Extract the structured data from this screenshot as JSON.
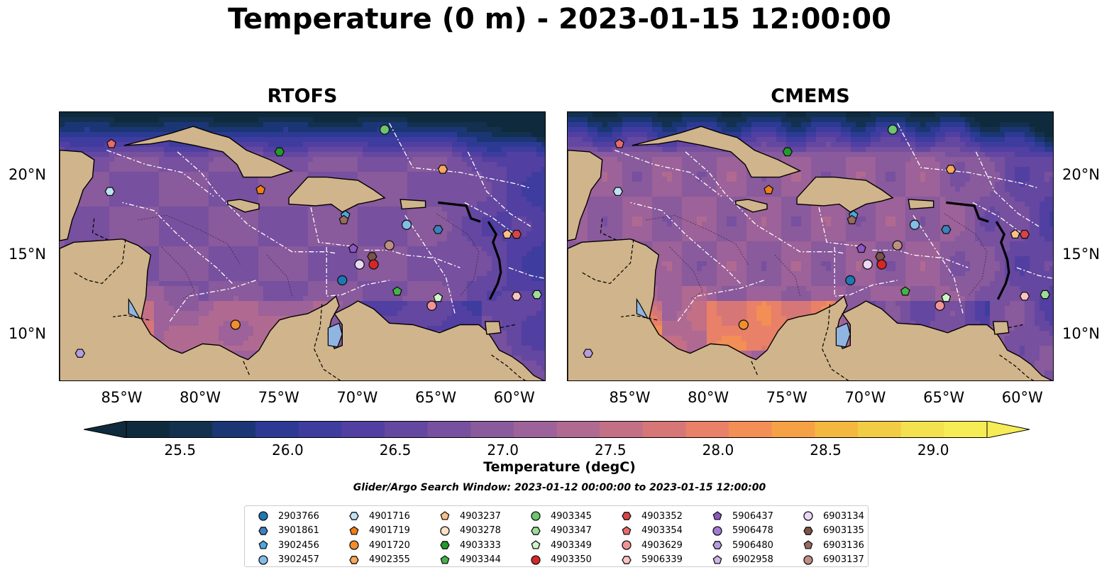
{
  "figure": {
    "title": "Temperature (0 m) - 2023-01-15 12:00:00"
  },
  "panels": [
    {
      "title": "RTOFS",
      "variant": "rtofs"
    },
    {
      "title": "CMEMS",
      "variant": "cmems"
    }
  ],
  "axes": {
    "x_ticks": [
      "85°W",
      "80°W",
      "75°W",
      "70°W",
      "65°W",
      "60°W"
    ],
    "y_ticks": [
      "20°N",
      "15°N",
      "10°N"
    ],
    "lon_range": [
      -89,
      -58
    ],
    "lat_range": [
      7,
      24
    ]
  },
  "colorbar": {
    "label": "Temperature (degC)",
    "ticks": [
      "25.5",
      "26.0",
      "26.5",
      "27.0",
      "27.5",
      "28.0",
      "28.5",
      "29.0"
    ],
    "range": [
      25.25,
      29.25
    ],
    "extend": "both",
    "colors": [
      "#0f2a3c",
      "#13304f",
      "#1b3675",
      "#2c3a94",
      "#3e3d9f",
      "#523fa2",
      "#6447a1",
      "#77509f",
      "#895a9c",
      "#9c6299",
      "#b06a91",
      "#c36f86",
      "#d67676",
      "#e98068",
      "#f38e56",
      "#f7a146",
      "#f4b83e",
      "#f2cc44",
      "#f3e14f",
      "#f6ec55"
    ]
  },
  "search_window": "Glider/Argo Search Window: 2023-01-12 00:00:00 to 2023-01-15 12:00:00",
  "legend": [
    {
      "id": "2903766",
      "marker": "circle",
      "color": "#1f77b4"
    },
    {
      "id": "3901861",
      "marker": "hexagon",
      "color": "#3d80c0"
    },
    {
      "id": "3902456",
      "marker": "pentagon",
      "color": "#4ea7e0"
    },
    {
      "id": "3902457",
      "marker": "circle",
      "color": "#82bde8"
    },
    {
      "id": "4901716",
      "marker": "hexagon",
      "color": "#bfe3f5"
    },
    {
      "id": "4901719",
      "marker": "pentagon",
      "color": "#f07f14"
    },
    {
      "id": "4901720",
      "marker": "circle",
      "color": "#f28f2c"
    },
    {
      "id": "4902355",
      "marker": "hexagon",
      "color": "#f8a85a"
    },
    {
      "id": "4903237",
      "marker": "pentagon",
      "color": "#fcc188"
    },
    {
      "id": "4903278",
      "marker": "circle",
      "color": "#fde0c5"
    },
    {
      "id": "4903333",
      "marker": "hexagon",
      "color": "#239b2a"
    },
    {
      "id": "4903344",
      "marker": "pentagon",
      "color": "#44b34a"
    },
    {
      "id": "4903345",
      "marker": "circle",
      "color": "#6cc56f"
    },
    {
      "id": "4903347",
      "marker": "hexagon",
      "color": "#9fdc9a"
    },
    {
      "id": "4903349",
      "marker": "pentagon",
      "color": "#cff5cc"
    },
    {
      "id": "4903350",
      "marker": "circle",
      "color": "#d62728"
    },
    {
      "id": "4903352",
      "marker": "hexagon",
      "color": "#d94448"
    },
    {
      "id": "4903354",
      "marker": "pentagon",
      "color": "#e96a6c"
    },
    {
      "id": "4903629",
      "marker": "circle",
      "color": "#f29496"
    },
    {
      "id": "5906339",
      "marker": "hexagon",
      "color": "#fbc4c4"
    },
    {
      "id": "5906437",
      "marker": "pentagon",
      "color": "#8c57c4"
    },
    {
      "id": "5906478",
      "marker": "circle",
      "color": "#a27ad2"
    },
    {
      "id": "5906480",
      "marker": "hexagon",
      "color": "#b79ddf"
    },
    {
      "id": "6902958",
      "marker": "pentagon",
      "color": "#ccb6ea"
    },
    {
      "id": "6903134",
      "marker": "circle",
      "color": "#ead8f6"
    },
    {
      "id": "6903135",
      "marker": "hexagon",
      "color": "#7d5347"
    },
    {
      "id": "6903136",
      "marker": "pentagon",
      "color": "#9a6a5d"
    },
    {
      "id": "6903137",
      "marker": "circle",
      "color": "#c08e83"
    }
  ],
  "floats": [
    {
      "id": "4903354",
      "lon": -85.7,
      "lat": 22.0
    },
    {
      "id": "4901716",
      "lon": -85.8,
      "lat": 19.0
    },
    {
      "id": "4903333",
      "lon": -75.0,
      "lat": 21.5
    },
    {
      "id": "4903345",
      "lon": -68.3,
      "lat": 22.9
    },
    {
      "id": "4902355",
      "lon": -64.6,
      "lat": 20.4
    },
    {
      "id": "4901719",
      "lon": -76.2,
      "lat": 19.1
    },
    {
      "id": "3902456",
      "lon": -70.8,
      "lat": 17.5
    },
    {
      "id": "6903136",
      "lon": -70.9,
      "lat": 17.2
    },
    {
      "id": "3902457",
      "lon": -66.9,
      "lat": 16.9
    },
    {
      "id": "3901861",
      "lon": -64.9,
      "lat": 16.6
    },
    {
      "id": "4903237",
      "lon": -60.5,
      "lat": 16.3
    },
    {
      "id": "4903352",
      "lon": -59.9,
      "lat": 16.3
    },
    {
      "id": "6903137",
      "lon": -68.0,
      "lat": 15.6
    },
    {
      "id": "5906437",
      "lon": -70.3,
      "lat": 15.4
    },
    {
      "id": "6903135",
      "lon": -69.1,
      "lat": 14.9
    },
    {
      "id": "6903134",
      "lon": -69.9,
      "lat": 14.4
    },
    {
      "id": "4903350",
      "lon": -69.0,
      "lat": 14.4
    },
    {
      "id": "2903766",
      "lon": -71.0,
      "lat": 13.4
    },
    {
      "id": "4903344",
      "lon": -67.5,
      "lat": 12.7
    },
    {
      "id": "4903349",
      "lon": -64.9,
      "lat": 12.3
    },
    {
      "id": "4903629",
      "lon": -65.3,
      "lat": 11.8
    },
    {
      "id": "5906339",
      "lon": -59.9,
      "lat": 12.4
    },
    {
      "id": "4903347",
      "lon": -58.6,
      "lat": 12.5
    },
    {
      "id": "4901720",
      "lon": -77.8,
      "lat": 10.6
    },
    {
      "id": "5906480",
      "lon": -87.7,
      "lat": 8.8
    }
  ]
}
